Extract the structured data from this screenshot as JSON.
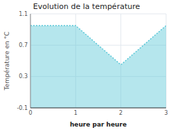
{
  "chart_data": {
    "type": "area",
    "title": "Evolution de la température",
    "xlabel": "heure par heure",
    "ylabel": "Température en °C",
    "x": [
      0,
      1,
      2,
      3
    ],
    "values": [
      0.95,
      0.95,
      0.45,
      0.95
    ],
    "color": "#5bc8d8",
    "xlim": [
      0,
      3
    ],
    "ylim": [
      -0.1,
      1.1
    ],
    "xticks": [
      0,
      1,
      2,
      3
    ],
    "yticks": [
      -0.1,
      0.3,
      0.7,
      1.1
    ],
    "grid": true
  }
}
